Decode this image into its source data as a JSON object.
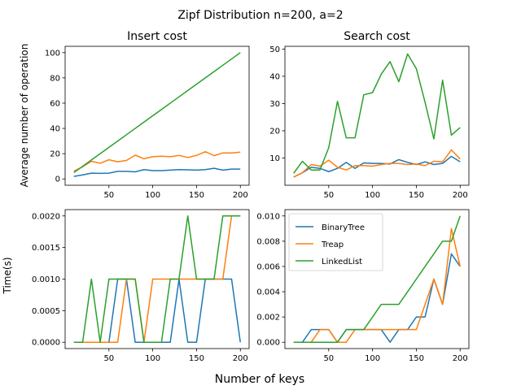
{
  "figure": {
    "title": "Zipf Distribution n=200, a=2",
    "xlabel": "Number of keys"
  },
  "legend": [
    "BinaryTree",
    "Treap",
    "LinkedList"
  ],
  "colors": {
    "BinaryTree": "#1f77b4",
    "Treap": "#ff7f0e",
    "LinkedList": "#2ca02c"
  },
  "chart_data": [
    {
      "type": "line",
      "title": "Insert cost",
      "xlabel": "",
      "ylabel": "Average number of operation",
      "xlim": [
        0,
        210
      ],
      "ylim": [
        -5,
        105
      ],
      "xticks": [
        50,
        100,
        150,
        200
      ],
      "yticks": [
        0,
        20,
        40,
        60,
        80,
        100
      ],
      "x": [
        10,
        20,
        30,
        40,
        50,
        60,
        70,
        80,
        90,
        100,
        110,
        120,
        130,
        140,
        150,
        160,
        170,
        180,
        190,
        200
      ],
      "series": [
        {
          "name": "BinaryTree",
          "values": [
            2,
            3.2,
            4.6,
            4.4,
            4.6,
            6.0,
            6.0,
            5.6,
            7.4,
            6.6,
            6.6,
            7.0,
            7.4,
            7.2,
            7.0,
            7.4,
            8.4,
            7.0,
            7.8,
            7.8
          ]
        },
        {
          "name": "Treap",
          "values": [
            6.2,
            9.6,
            14.0,
            12.4,
            15.2,
            13.6,
            14.6,
            18.8,
            16.0,
            17.6,
            18.0,
            17.6,
            18.6,
            17.0,
            18.6,
            21.6,
            18.4,
            20.6,
            20.6,
            21.2
          ]
        },
        {
          "name": "LinkedList",
          "values": [
            5,
            10,
            15,
            20,
            25,
            30,
            35,
            40,
            45,
            50,
            55,
            60,
            65,
            70,
            75,
            80,
            85,
            90,
            95,
            100
          ]
        }
      ]
    },
    {
      "type": "line",
      "title": "Search cost",
      "xlabel": "",
      "ylabel": "",
      "xlim": [
        0,
        210
      ],
      "ylim": [
        0,
        51
      ],
      "xticks": [
        50,
        100,
        150,
        200
      ],
      "yticks": [
        10,
        20,
        30,
        40,
        50
      ],
      "x": [
        10,
        20,
        30,
        40,
        50,
        60,
        70,
        80,
        90,
        100,
        110,
        120,
        130,
        140,
        150,
        160,
        170,
        180,
        190,
        200
      ],
      "series": [
        {
          "name": "BinaryTree",
          "values": [
            3,
            4.6,
            6.6,
            6.2,
            5.0,
            6.2,
            8.4,
            6.2,
            8.2,
            8.0,
            8.0,
            7.8,
            9.4,
            8.4,
            7.6,
            8.6,
            7.6,
            8.0,
            10.6,
            8.6
          ]
        },
        {
          "name": "Treap",
          "values": [
            3,
            4.6,
            7.6,
            7.0,
            9.2,
            6.6,
            5.6,
            7.2,
            7.2,
            7.0,
            7.6,
            8.0,
            8.0,
            7.6,
            7.8,
            7.2,
            8.8,
            8.6,
            13.0,
            9.6
          ]
        },
        {
          "name": "LinkedList",
          "values": [
            4.4,
            8.8,
            5.6,
            5.6,
            13.8,
            30.8,
            17.4,
            17.4,
            33.2,
            34.0,
            40.8,
            45.4,
            38.0,
            48.2,
            42.8,
            30.4,
            17.0,
            38.6,
            18.4,
            21.2
          ]
        }
      ]
    },
    {
      "type": "line",
      "title": "",
      "xlabel": "",
      "ylabel": "Time(s)",
      "xlim": [
        0,
        210
      ],
      "ylim": [
        -0.0001,
        0.0021
      ],
      "xticks": [
        50,
        100,
        150,
        200
      ],
      "yticks": [
        0.0,
        0.0005,
        0.001,
        0.0015,
        0.002
      ],
      "ytick_labels": [
        "0.0000",
        "0.0005",
        "0.0010",
        "0.0015",
        "0.0020"
      ],
      "x": [
        10,
        20,
        30,
        40,
        50,
        60,
        70,
        80,
        90,
        100,
        110,
        120,
        130,
        140,
        150,
        160,
        170,
        180,
        190,
        200
      ],
      "series": [
        {
          "name": "BinaryTree",
          "values": [
            0,
            0,
            0,
            0,
            0,
            0.001,
            0.001,
            0,
            0,
            0,
            0,
            0,
            0.001,
            0,
            0,
            0.001,
            0.001,
            0.001,
            0.001,
            0
          ]
        },
        {
          "name": "Treap",
          "values": [
            0,
            0,
            0,
            0,
            0,
            0,
            0.001,
            0.001,
            0,
            0.001,
            0.001,
            0.001,
            0.001,
            0.001,
            0.001,
            0.001,
            0.001,
            0.001,
            0.002,
            0.002
          ]
        },
        {
          "name": "LinkedList",
          "values": [
            0,
            0,
            0.001,
            0,
            0.001,
            0.001,
            0.001,
            0.001,
            0,
            0,
            0,
            0.001,
            0.001,
            0.002,
            0.001,
            0.001,
            0.001,
            0.002,
            0.002,
            0.002
          ]
        }
      ]
    },
    {
      "type": "line",
      "title": "",
      "xlabel": "",
      "ylabel": "",
      "xlim": [
        0,
        210
      ],
      "ylim": [
        -0.0005,
        0.0105
      ],
      "xticks": [
        50,
        100,
        150,
        200
      ],
      "yticks": [
        0.0,
        0.002,
        0.004,
        0.006,
        0.008,
        0.01
      ],
      "ytick_labels": [
        "0.000",
        "0.002",
        "0.004",
        "0.006",
        "0.008",
        "0.010"
      ],
      "legend_position": "upper-left",
      "x": [
        10,
        20,
        30,
        40,
        50,
        60,
        70,
        80,
        90,
        100,
        110,
        120,
        130,
        140,
        150,
        160,
        170,
        180,
        190,
        200
      ],
      "series": [
        {
          "name": "BinaryTree",
          "values": [
            0,
            0,
            0.001,
            0.001,
            0.001,
            0,
            0.001,
            0.001,
            0.001,
            0.001,
            0.001,
            0,
            0.001,
            0.001,
            0.002,
            0.002,
            0.005,
            0.003,
            0.007,
            0.006
          ]
        },
        {
          "name": "Treap",
          "values": [
            0,
            0,
            0,
            0.001,
            0.001,
            0,
            0,
            0.001,
            0.001,
            0.001,
            0.001,
            0.001,
            0.001,
            0.001,
            0.001,
            0.003,
            0.005,
            0.003,
            0.009,
            0.006
          ]
        },
        {
          "name": "LinkedList",
          "values": [
            0,
            0,
            0,
            0,
            0,
            0,
            0.001,
            0.001,
            0.001,
            0.002,
            0.003,
            0.003,
            0.003,
            0.004,
            0.005,
            0.006,
            0.007,
            0.008,
            0.008,
            0.01
          ]
        }
      ]
    }
  ]
}
